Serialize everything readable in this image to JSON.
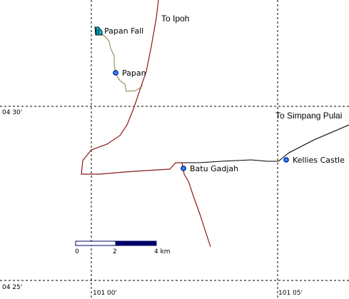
{
  "map": {
    "grid_labels": {
      "lat_upper": "04 30'",
      "lat_lower": "04 25'",
      "lon_left": "101 00'",
      "lon_right": "101 05'"
    },
    "places": [
      {
        "id": "papan-fall",
        "name": "Papan Fall",
        "symbol": "waterfall-icon"
      },
      {
        "id": "papan",
        "name": "Papan",
        "symbol": "town-dot-icon"
      },
      {
        "id": "batu-gadjah",
        "name": "Batu Gadjah",
        "symbol": "town-dot-icon"
      },
      {
        "id": "kellies-castle",
        "name": "Kellies Castle",
        "symbol": "town-dot-icon"
      }
    ],
    "destinations": {
      "ipoh": "To Ipoh",
      "simpang_pulai": "To Simpang Pulai"
    },
    "scale_bar": {
      "labels": [
        "0",
        "2",
        "4 km"
      ]
    },
    "colors": {
      "main_road": "#8b1a1a",
      "secondary_road": "#000000",
      "trail": "#8b7d45",
      "place_fill": "#1e90ff",
      "place_stroke": "#00008b",
      "waterfall": "#00bcd4",
      "scale_dark": "#000066"
    }
  }
}
